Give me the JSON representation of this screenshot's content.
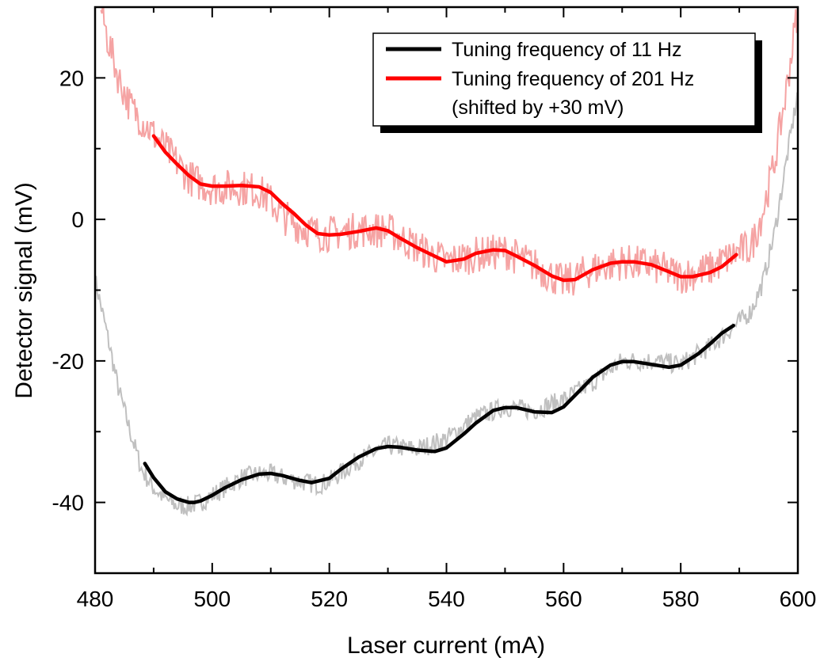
{
  "chart_data": {
    "type": "line",
    "xlabel": "Laser current (mA)",
    "ylabel": "Detector signal (mV)",
    "xlim": [
      480,
      600
    ],
    "ylim": [
      -50,
      30
    ],
    "xticks": [
      480,
      500,
      520,
      540,
      560,
      580,
      600
    ],
    "yticks": [
      -40,
      -20,
      0,
      20
    ],
    "grid": false,
    "legend_position": "top-right",
    "legend": [
      {
        "label": "Tuning frequency of 11 Hz",
        "color": "#000000"
      },
      {
        "label": "Tuning frequency of 201 Hz",
        "color": "#ff0000"
      },
      {
        "label": "(shifted by +30 mV)",
        "color": null
      }
    ],
    "series": [
      {
        "role": "raw",
        "color": "#c0c0c0",
        "x": [
          480,
          482,
          484,
          486,
          488,
          490,
          492,
          494,
          496,
          498,
          500,
          502,
          505,
          508,
          510,
          512,
          515,
          518,
          520,
          525,
          530,
          535,
          540,
          545,
          550,
          555,
          560,
          565,
          570,
          575,
          580,
          585,
          590,
          592,
          594,
          596,
          598,
          600
        ],
        "y": [
          -8.5,
          -16,
          -24,
          -30,
          -35.5,
          -38,
          -39.5,
          -40.5,
          -40.5,
          -40,
          -39,
          -38,
          -36.5,
          -36,
          -36,
          -36.5,
          -37,
          -37.5,
          -37,
          -34,
          -32,
          -32.5,
          -31,
          -28,
          -26.5,
          -27,
          -25.5,
          -23,
          -20,
          -20,
          -20.5,
          -18,
          -14.5,
          -13,
          -9,
          -2,
          8,
          18
        ]
      },
      {
        "role": "fit",
        "name": "Tuning frequency of 11 Hz",
        "color": "#000000",
        "x": [
          488.5,
          490,
          492,
          494,
          496,
          497,
          498,
          500,
          502,
          505,
          508,
          510,
          512,
          515,
          517,
          520,
          522,
          525,
          528,
          530,
          532,
          535,
          538,
          540,
          543,
          545,
          548,
          550,
          552,
          555,
          558,
          560,
          563,
          565,
          568,
          570,
          572,
          575,
          578,
          580,
          583,
          585,
          587,
          589
        ],
        "y": [
          -34.5,
          -36.5,
          -38.5,
          -39.5,
          -40,
          -40,
          -39.8,
          -39,
          -38,
          -36.8,
          -36,
          -35.9,
          -36.2,
          -36.9,
          -37.2,
          -36.6,
          -35.3,
          -33.6,
          -32.4,
          -32.1,
          -32.2,
          -32.6,
          -32.8,
          -32.3,
          -30.3,
          -28.8,
          -27,
          -26.6,
          -26.6,
          -27.2,
          -27.3,
          -26.5,
          -24,
          -22.3,
          -20.6,
          -20.1,
          -20.1,
          -20.5,
          -20.9,
          -20.6,
          -19,
          -17.6,
          -16.1,
          -15
        ]
      },
      {
        "role": "raw",
        "color": "#f5a3a3",
        "x": [
          481,
          482,
          484,
          486,
          488,
          490,
          492,
          494,
          496,
          498,
          500,
          502,
          505,
          508,
          510,
          512,
          515,
          518,
          520,
          525,
          530,
          535,
          540,
          545,
          550,
          555,
          560,
          565,
          570,
          575,
          580,
          585,
          590,
          592,
          594,
          596,
          598,
          600
        ],
        "y": [
          30,
          26,
          20,
          16,
          14,
          12,
          10,
          8,
          6,
          5,
          4.5,
          4.5,
          4.5,
          4,
          2.5,
          0.5,
          -1,
          -2,
          -2,
          -1.5,
          -1.5,
          -4,
          -6,
          -5,
          -4.5,
          -6.5,
          -9,
          -7,
          -6,
          -6.5,
          -8,
          -7,
          -4.5,
          -4,
          1,
          8,
          18,
          30
        ]
      },
      {
        "role": "fit",
        "name": "Tuning frequency of 201 Hz",
        "color": "#ff0000",
        "x": [
          490,
          492,
          494,
          496,
          498,
          500,
          502,
          505,
          508,
          510,
          512,
          514,
          516,
          518,
          520,
          522,
          525,
          528,
          530,
          532,
          535,
          538,
          540,
          543,
          545,
          548,
          550,
          552,
          555,
          558,
          560,
          562,
          565,
          568,
          570,
          572,
          575,
          578,
          580,
          582,
          585,
          587,
          589.5
        ],
        "y": [
          11.8,
          9.5,
          7.8,
          6.2,
          5,
          4.7,
          4.7,
          4.8,
          4.6,
          3.8,
          2.2,
          0.8,
          -0.8,
          -2,
          -2.2,
          -2.1,
          -1.7,
          -1.2,
          -1.6,
          -2.6,
          -4,
          -5.2,
          -6,
          -5.6,
          -4.8,
          -4.3,
          -4.4,
          -5.2,
          -6.5,
          -8,
          -8.6,
          -8.5,
          -7.1,
          -6.2,
          -6,
          -6,
          -6.4,
          -7.4,
          -8.1,
          -8.1,
          -7.5,
          -6.7,
          -5
        ]
      }
    ]
  }
}
